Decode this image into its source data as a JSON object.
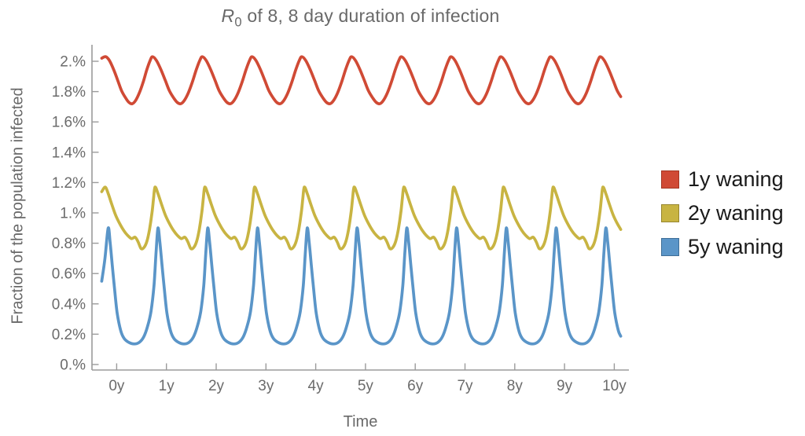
{
  "chart_data": {
    "type": "line",
    "title": "R0 of 8, 8 day duration of infection",
    "title_parts": {
      "var": "R",
      "sub": "0",
      "rest": " of 8, 8 day duration of infection"
    },
    "xlabel": "Time",
    "ylabel": "Fraction of the population infected",
    "x_unit": "years",
    "y_unit": "% of population infected",
    "grid": false,
    "legend_position": "right-outside",
    "xlim": [
      -0.5,
      10.3
    ],
    "ylim": [
      0,
      2.11
    ],
    "x_data_range": [
      -0.3,
      10.13
    ],
    "x_ticks": {
      "values": [
        0,
        1,
        2,
        3,
        4,
        5,
        6,
        7,
        8,
        9,
        10
      ],
      "labels": [
        "0y",
        "1y",
        "2y",
        "3y",
        "4y",
        "5y",
        "6y",
        "7y",
        "8y",
        "9y",
        "10y"
      ]
    },
    "y_ticks": {
      "values": [
        0,
        0.2,
        0.4,
        0.6,
        0.8,
        1.0,
        1.2,
        1.4,
        1.6,
        1.8,
        2.0
      ],
      "labels": [
        "0.%",
        "0.2%",
        "0.4%",
        "0.6%",
        "0.8%",
        "1.%",
        "1.2%",
        "1.4%",
        "1.6%",
        "1.8%",
        "2.%"
      ]
    },
    "axis_color": "#9b9b9b",
    "tick_text_color": "#6b6b6b",
    "series": [
      {
        "name": "1y waning",
        "color": "#d04a35",
        "legend_border": "#a33723",
        "period_years": 1,
        "peak_pct": 2.03,
        "trough_pct": 1.72,
        "start_points": [
          [
            -0.3,
            2.02
          ]
        ],
        "first_peak_t": -0.22,
        "second_peak_t": 0.72,
        "cycle_profile": [
          [
            0.0,
            2.03
          ],
          [
            0.08,
            2.005
          ],
          [
            0.17,
            1.945
          ],
          [
            0.26,
            1.872
          ],
          [
            0.34,
            1.805
          ],
          [
            0.43,
            1.756
          ],
          [
            0.5,
            1.728
          ],
          [
            0.57,
            1.72
          ],
          [
            0.64,
            1.742
          ],
          [
            0.72,
            1.792
          ],
          [
            0.8,
            1.862
          ],
          [
            0.88,
            1.945
          ],
          [
            0.95,
            2.005
          ]
        ]
      },
      {
        "name": "2y waning",
        "color": "#c8b442",
        "legend_border": "#97862f",
        "period_years": 1,
        "peak_pct": 1.17,
        "trough_pct": 0.765,
        "start_points": [
          [
            -0.3,
            1.14
          ]
        ],
        "first_peak_t": -0.23,
        "second_peak_t": 0.77,
        "cycle_profile": [
          [
            0.0,
            1.17
          ],
          [
            0.06,
            1.128
          ],
          [
            0.13,
            1.058
          ],
          [
            0.21,
            0.985
          ],
          [
            0.29,
            0.93
          ],
          [
            0.37,
            0.885
          ],
          [
            0.45,
            0.852
          ],
          [
            0.53,
            0.83
          ],
          [
            0.6,
            0.84
          ],
          [
            0.66,
            0.81
          ],
          [
            0.72,
            0.765
          ],
          [
            0.78,
            0.772
          ],
          [
            0.84,
            0.815
          ],
          [
            0.89,
            0.89
          ],
          [
            0.94,
            1.0
          ],
          [
            0.97,
            1.09
          ]
        ]
      },
      {
        "name": "5y waning",
        "color": "#5a95c8",
        "legend_border": "#3f6e97",
        "period_years": 1,
        "peak_pct": 0.9,
        "trough_pct": 0.135,
        "start_points": [
          [
            -0.3,
            0.55
          ],
          [
            -0.235,
            0.7
          ]
        ],
        "first_peak_t": -0.17,
        "second_peak_t": 0.83,
        "cycle_profile": [
          [
            0.0,
            0.9
          ],
          [
            0.04,
            0.8
          ],
          [
            0.08,
            0.66
          ],
          [
            0.13,
            0.49
          ],
          [
            0.18,
            0.34
          ],
          [
            0.25,
            0.225
          ],
          [
            0.32,
            0.172
          ],
          [
            0.42,
            0.145
          ],
          [
            0.52,
            0.136
          ],
          [
            0.62,
            0.145
          ],
          [
            0.71,
            0.18
          ],
          [
            0.79,
            0.25
          ],
          [
            0.86,
            0.35
          ],
          [
            0.92,
            0.52
          ],
          [
            0.96,
            0.73
          ]
        ]
      }
    ]
  }
}
